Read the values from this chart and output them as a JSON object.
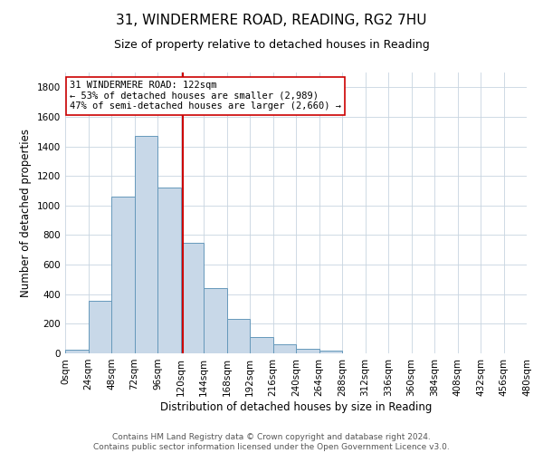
{
  "title": "31, WINDERMERE ROAD, READING, RG2 7HU",
  "subtitle": "Size of property relative to detached houses in Reading",
  "xlabel": "Distribution of detached houses by size in Reading",
  "ylabel": "Number of detached properties",
  "footer_line1": "Contains HM Land Registry data © Crown copyright and database right 2024.",
  "footer_line2": "Contains public sector information licensed under the Open Government Licence v3.0.",
  "bar_edges": [
    0,
    24,
    48,
    72,
    96,
    120,
    144,
    168,
    192,
    216,
    240,
    264,
    288,
    312,
    336,
    360,
    384,
    408,
    432,
    456,
    480
  ],
  "bar_heights": [
    25,
    355,
    1060,
    1470,
    1120,
    745,
    440,
    230,
    110,
    60,
    28,
    18,
    0,
    0,
    0,
    0,
    0,
    0,
    0,
    0
  ],
  "bar_color": "#c8d8e8",
  "bar_edgecolor": "#6699bb",
  "vline_x": 122,
  "vline_color": "#cc0000",
  "ylim": [
    0,
    1900
  ],
  "yticks": [
    0,
    200,
    400,
    600,
    800,
    1000,
    1200,
    1400,
    1600,
    1800
  ],
  "xtick_labels": [
    "0sqm",
    "24sqm",
    "48sqm",
    "72sqm",
    "96sqm",
    "120sqm",
    "144sqm",
    "168sqm",
    "192sqm",
    "216sqm",
    "240sqm",
    "264sqm",
    "288sqm",
    "312sqm",
    "336sqm",
    "360sqm",
    "384sqm",
    "408sqm",
    "432sqm",
    "456sqm",
    "480sqm"
  ],
  "annotation_title": "31 WINDERMERE ROAD: 122sqm",
  "annotation_line1": "← 53% of detached houses are smaller (2,989)",
  "annotation_line2": "47% of semi-detached houses are larger (2,660) →",
  "annotation_box_color": "#ffffff",
  "annotation_box_edgecolor": "#cc0000",
  "title_fontsize": 11,
  "subtitle_fontsize": 9,
  "axis_label_fontsize": 8.5,
  "tick_fontsize": 7.5,
  "annotation_fontsize": 7.5,
  "footer_fontsize": 6.5
}
